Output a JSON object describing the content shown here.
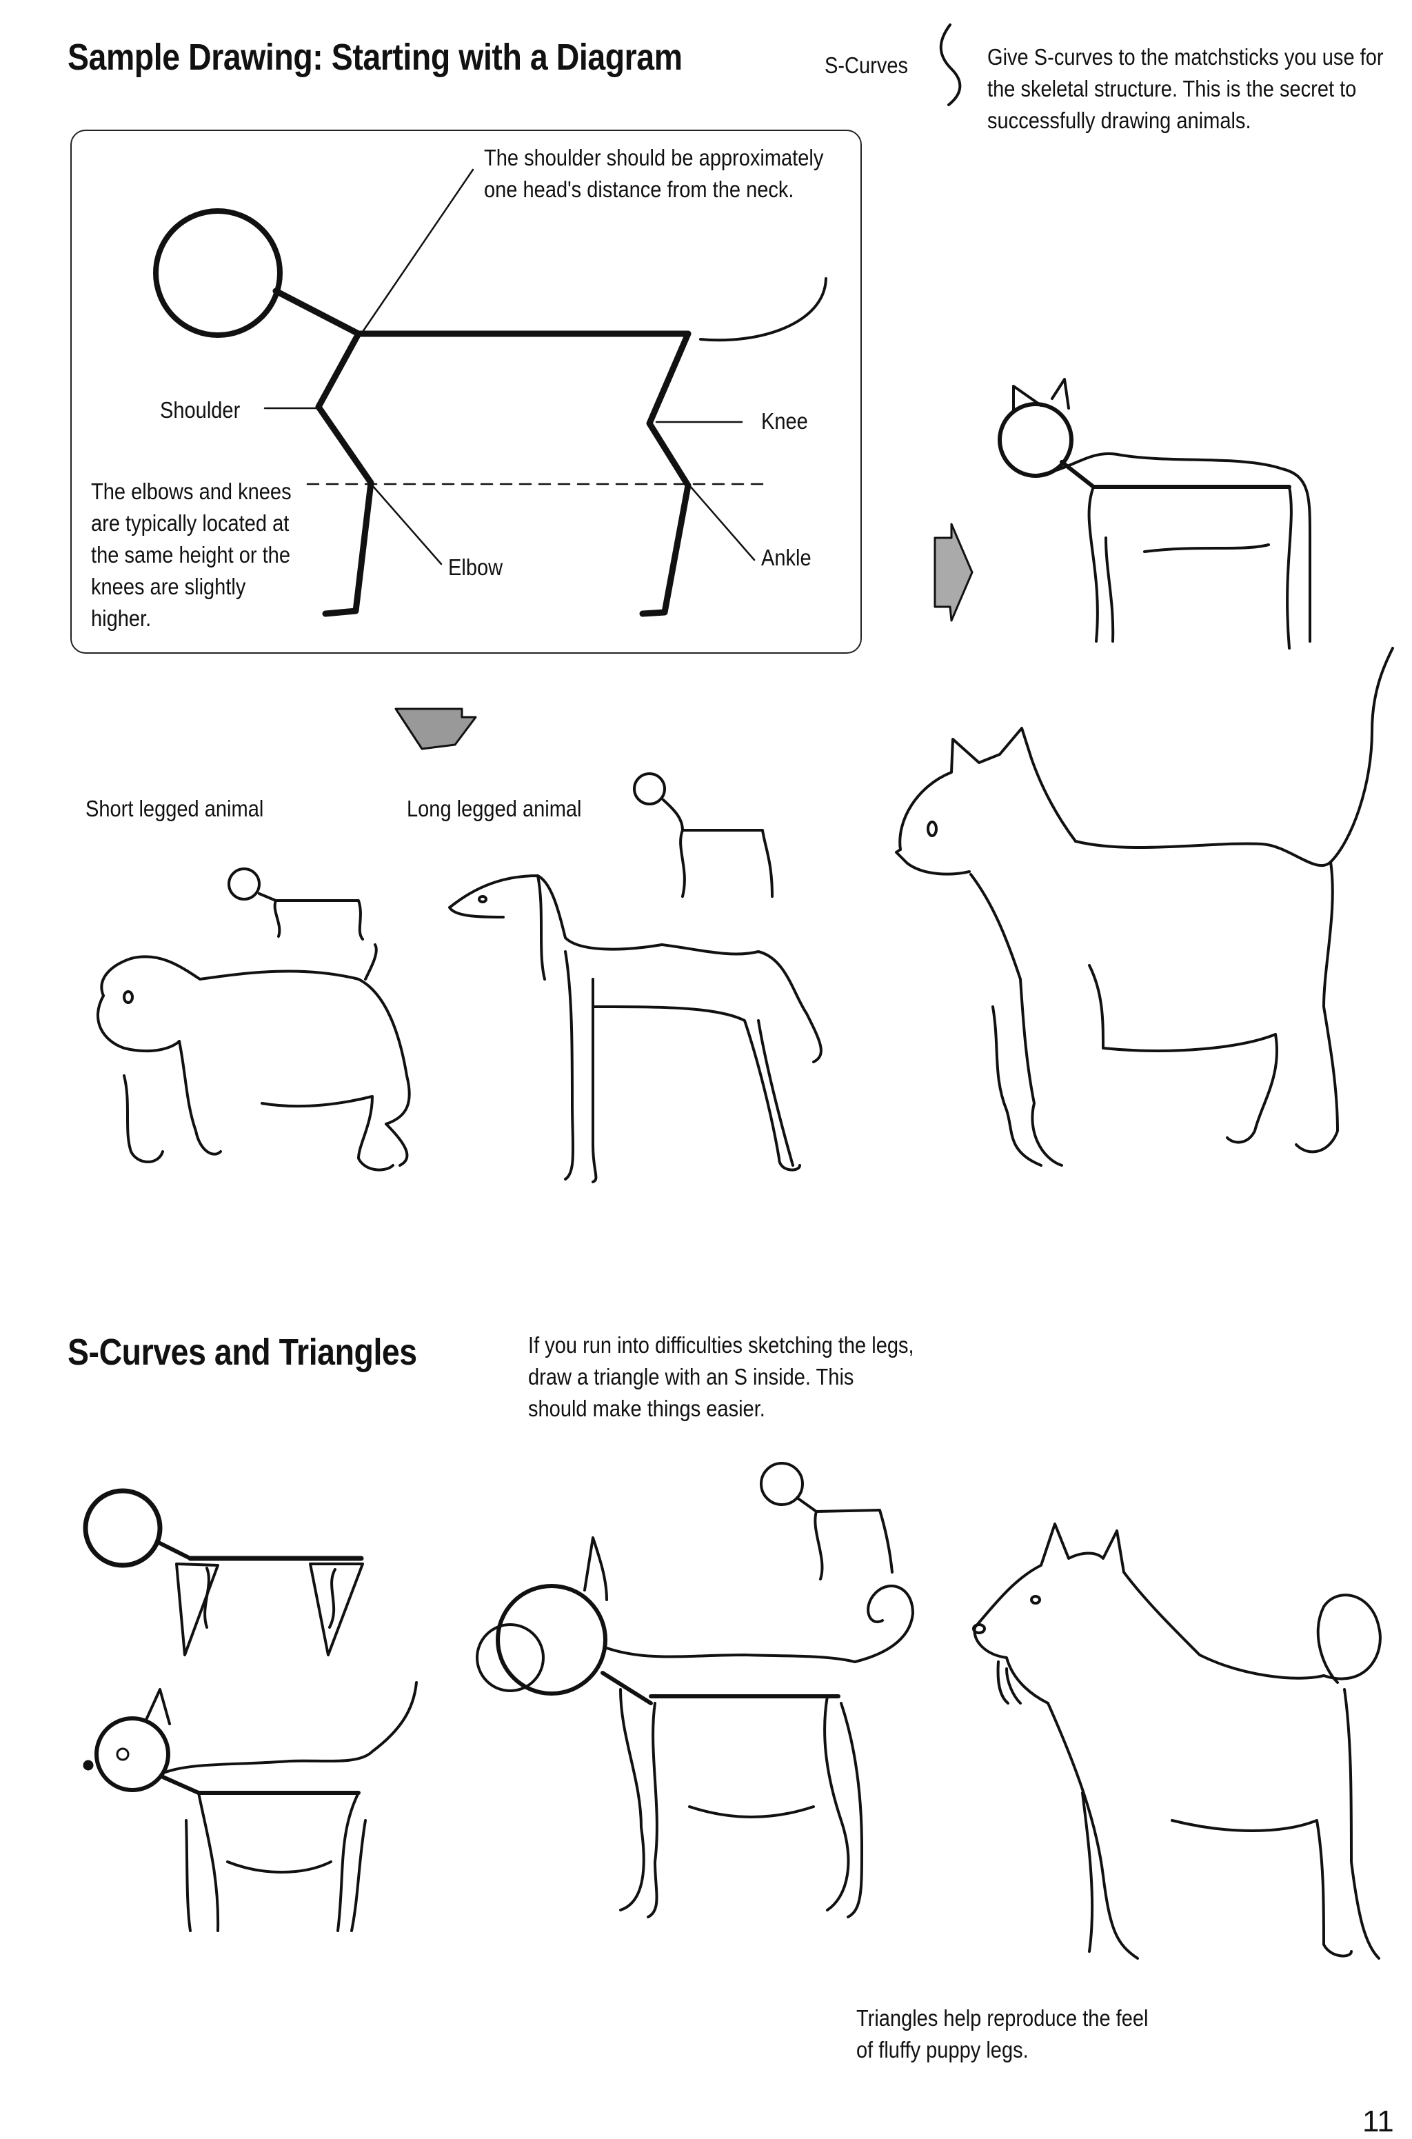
{
  "page": {
    "section1_title": "Sample Drawing: Starting with a Diagram",
    "section2_title": "S-Curves and Triangles",
    "page_number": "11"
  },
  "scurves_note": {
    "label": "S-Curves",
    "text": "Give S-curves to the matchsticks you use for the skeletal structure. This is the secret to successfully drawing animals."
  },
  "diagram": {
    "shoulder_note": "The shoulder should be approximately one head's distance from the neck.",
    "shoulder_label": "Shoulder",
    "knee_label": "Knee",
    "elbow_label": "Elbow",
    "ankle_label": "Ankle",
    "elbows_note": "The elbows and knees are typically located at the same height or the knees are slightly higher."
  },
  "examples": {
    "short_legged": "Short legged animal",
    "long_legged": "Long legged animal"
  },
  "triangles": {
    "intro": "If you run into difficulties sketching the legs, draw a triangle with an S inside. This should make things easier.",
    "puppy_note": "Triangles help reproduce the feel of fluffy puppy legs."
  }
}
